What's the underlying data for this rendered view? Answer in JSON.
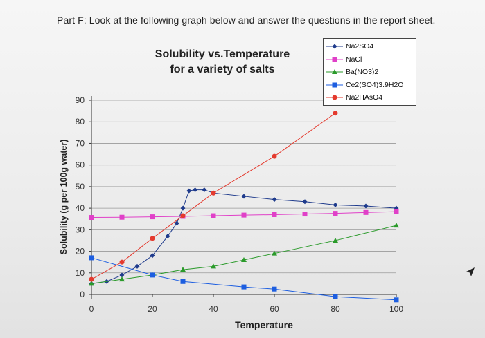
{
  "page": {
    "heading": "Part F: Look at the following graph below and answer the questions in the report sheet."
  },
  "chart_data": {
    "type": "line",
    "title_line1": "Solubility vs.Temperature",
    "title_line2": "for a variety of salts",
    "xlabel": "Temperature",
    "ylabel": "Solubility (g per 100g water)",
    "xlim": [
      0,
      100
    ],
    "ylim": [
      0,
      90
    ],
    "x_ticks": [
      0,
      20,
      40,
      60,
      80,
      100
    ],
    "y_ticks": [
      0,
      10,
      20,
      30,
      40,
      50,
      60,
      70,
      80,
      90
    ],
    "grid": "horizontal",
    "legend_position": "top-right",
    "series": [
      {
        "name": "Na2SO4",
        "color": "#1f3b8c",
        "marker": "diamond",
        "x": [
          0,
          5,
          10,
          15,
          20,
          25,
          28,
          30,
          32,
          34,
          37,
          40,
          50,
          60,
          70,
          80,
          90,
          100
        ],
        "y": [
          5,
          6,
          9,
          13,
          18,
          27,
          33,
          40,
          48,
          48.5,
          48.5,
          47,
          45.5,
          44,
          43,
          41.5,
          41,
          40
        ]
      },
      {
        "name": "NaCl",
        "color": "#e040c8",
        "marker": "square",
        "x": [
          0,
          10,
          20,
          30,
          40,
          50,
          60,
          70,
          80,
          90,
          100
        ],
        "y": [
          35.7,
          35.8,
          36,
          36.2,
          36.5,
          36.8,
          37,
          37.3,
          37.6,
          38,
          38.4
        ]
      },
      {
        "name": "Ba(NO3)2",
        "color": "#2a9a2a",
        "marker": "triangle",
        "x": [
          0,
          10,
          20,
          30,
          40,
          50,
          60,
          80,
          100
        ],
        "y": [
          5,
          7,
          9,
          11.5,
          13,
          16,
          19,
          25,
          32
        ]
      },
      {
        "name": "Ce2(SO4)3.9H2O",
        "color": "#1d5ee0",
        "marker": "square",
        "x": [
          0,
          20,
          30,
          50,
          60,
          80,
          100
        ],
        "y": [
          17,
          9,
          6,
          3.5,
          2.5,
          -1,
          -2.5
        ]
      },
      {
        "name": "Na2HAsO4",
        "color": "#e43a2e",
        "marker": "circle",
        "x": [
          0,
          10,
          20,
          30,
          40,
          60,
          80
        ],
        "y": [
          7,
          15,
          26,
          36.5,
          47,
          64,
          84
        ]
      }
    ]
  }
}
